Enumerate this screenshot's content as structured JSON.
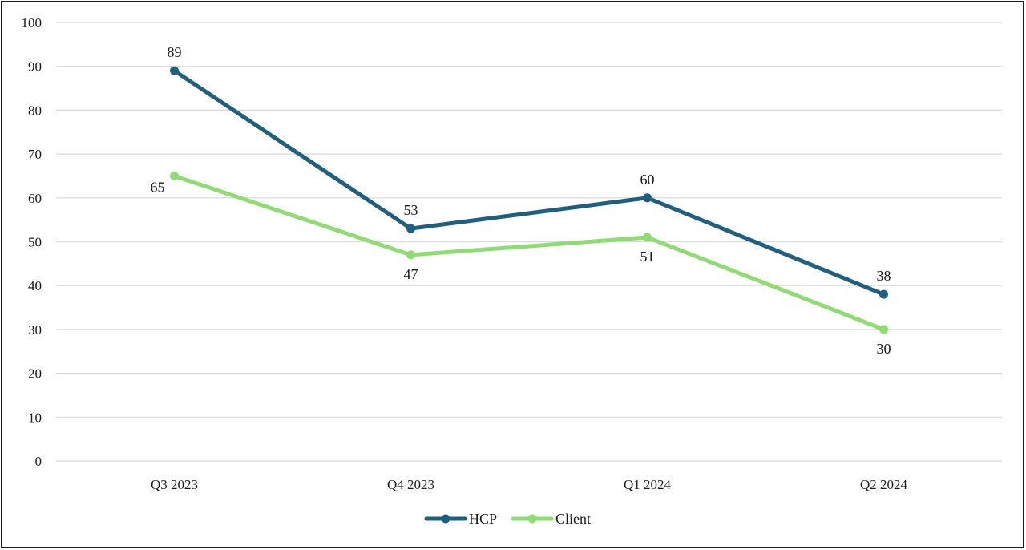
{
  "chart_data": {
    "type": "line",
    "title": "",
    "xlabel": "",
    "ylabel": "",
    "categories": [
      "Q3 2023",
      "Q4 2023",
      "Q1 2024",
      "Q2 2024"
    ],
    "ylim": [
      0,
      100
    ],
    "yticks": [
      "0",
      "10",
      "20",
      "30",
      "40",
      "50",
      "60",
      "70",
      "80",
      "90",
      "100"
    ],
    "grid": true,
    "legend_position": "bottom",
    "series": [
      {
        "name": "HCP",
        "color": "#1f5f7f",
        "values": [
          89,
          53,
          60,
          38
        ],
        "labels": [
          "89",
          "53",
          "60",
          "38"
        ],
        "label_placement": [
          "above",
          "above",
          "above",
          "above"
        ]
      },
      {
        "name": "Client",
        "color": "#8fdc73",
        "values": [
          65,
          47,
          51,
          30
        ],
        "labels": [
          "65",
          "47",
          "51",
          "30"
        ],
        "label_placement": [
          "left",
          "below",
          "below",
          "below"
        ]
      }
    ]
  }
}
